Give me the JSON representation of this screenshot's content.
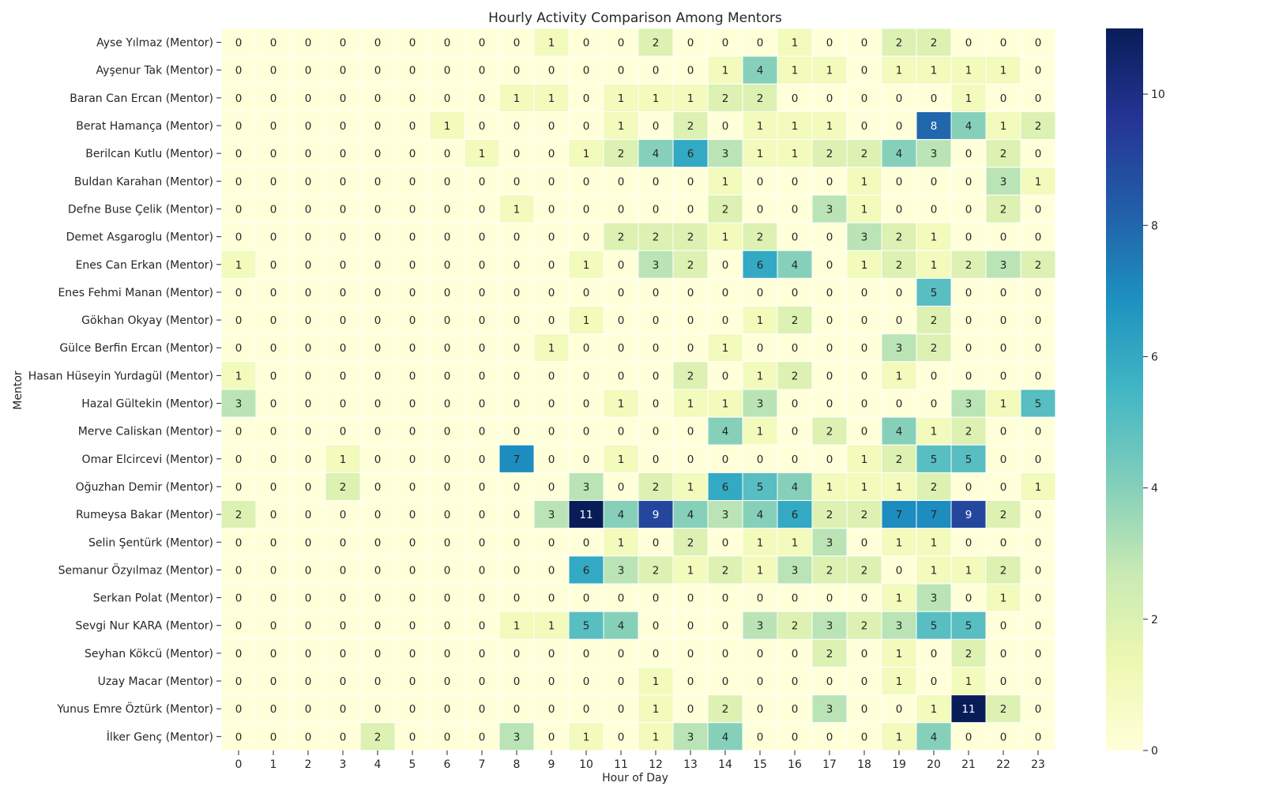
{
  "chart_data": {
    "type": "heatmap",
    "title": "Hourly Activity Comparison Among Mentors",
    "xlabel": "Hour of Day",
    "ylabel": "Mentor",
    "x": [
      "0",
      "1",
      "2",
      "3",
      "4",
      "5",
      "6",
      "7",
      "8",
      "9",
      "10",
      "11",
      "12",
      "13",
      "14",
      "15",
      "16",
      "17",
      "18",
      "19",
      "20",
      "21",
      "22",
      "23"
    ],
    "y": [
      "Ayse Yılmaz (Mentor)",
      "Ayşenur Tak (Mentor)",
      "Baran Can Ercan (Mentor)",
      "Berat Hamança (Mentor)",
      "Berilcan Kutlu (Mentor)",
      "Buldan Karahan (Mentor)",
      "Defne Buse Çelik (Mentor)",
      "Demet Asgaroglu (Mentor)",
      "Enes Can Erkan (Mentor)",
      "Enes Fehmi Manan (Mentor)",
      "Gökhan Okyay (Mentor)",
      "Gülce Berfin Ercan (Mentor)",
      "Hasan Hüseyin Yurdagül (Mentor)",
      "Hazal Gültekin (Mentor)",
      "Merve Caliskan (Mentor)",
      "Omar Elcircevi (Mentor)",
      "Oğuzhan Demir (Mentor)",
      "Rumeysa Bakar (Mentor)",
      "Selin Şentürk (Mentor)",
      "Semanur Özyılmaz (Mentor)",
      "Serkan Polat (Mentor)",
      "Sevgi Nur KARA (Mentor)",
      "Seyhan Kökcü (Mentor)",
      "Uzay Macar (Mentor)",
      "Yunus Emre Öztürk (Mentor)",
      "İlker Genç (Mentor)"
    ],
    "values": [
      [
        0,
        0,
        0,
        0,
        0,
        0,
        0,
        0,
        0,
        1,
        0,
        0,
        2,
        0,
        0,
        0,
        1,
        0,
        0,
        2,
        2,
        0,
        0,
        0
      ],
      [
        0,
        0,
        0,
        0,
        0,
        0,
        0,
        0,
        0,
        0,
        0,
        0,
        0,
        0,
        1,
        4,
        1,
        1,
        0,
        1,
        1,
        1,
        1,
        0
      ],
      [
        0,
        0,
        0,
        0,
        0,
        0,
        0,
        0,
        1,
        1,
        0,
        1,
        1,
        1,
        2,
        2,
        0,
        0,
        0,
        0,
        0,
        1,
        0,
        0
      ],
      [
        0,
        0,
        0,
        0,
        0,
        0,
        1,
        0,
        0,
        0,
        0,
        1,
        0,
        2,
        0,
        1,
        1,
        1,
        0,
        0,
        8,
        4,
        1,
        2
      ],
      [
        0,
        0,
        0,
        0,
        0,
        0,
        0,
        1,
        0,
        0,
        1,
        2,
        4,
        6,
        3,
        1,
        1,
        2,
        2,
        4,
        3,
        0,
        2,
        0
      ],
      [
        0,
        0,
        0,
        0,
        0,
        0,
        0,
        0,
        0,
        0,
        0,
        0,
        0,
        0,
        1,
        0,
        0,
        0,
        1,
        0,
        0,
        0,
        3,
        1
      ],
      [
        0,
        0,
        0,
        0,
        0,
        0,
        0,
        0,
        1,
        0,
        0,
        0,
        0,
        0,
        2,
        0,
        0,
        3,
        1,
        0,
        0,
        0,
        2,
        0
      ],
      [
        0,
        0,
        0,
        0,
        0,
        0,
        0,
        0,
        0,
        0,
        0,
        2,
        2,
        2,
        1,
        2,
        0,
        0,
        3,
        2,
        1,
        0,
        0,
        0
      ],
      [
        1,
        0,
        0,
        0,
        0,
        0,
        0,
        0,
        0,
        0,
        1,
        0,
        3,
        2,
        0,
        6,
        4,
        0,
        1,
        2,
        1,
        2,
        3,
        2
      ],
      [
        0,
        0,
        0,
        0,
        0,
        0,
        0,
        0,
        0,
        0,
        0,
        0,
        0,
        0,
        0,
        0,
        0,
        0,
        0,
        0,
        5,
        0,
        0,
        0
      ],
      [
        0,
        0,
        0,
        0,
        0,
        0,
        0,
        0,
        0,
        0,
        1,
        0,
        0,
        0,
        0,
        1,
        2,
        0,
        0,
        0,
        2,
        0,
        0,
        0
      ],
      [
        0,
        0,
        0,
        0,
        0,
        0,
        0,
        0,
        0,
        1,
        0,
        0,
        0,
        0,
        1,
        0,
        0,
        0,
        0,
        3,
        2,
        0,
        0,
        0
      ],
      [
        1,
        0,
        0,
        0,
        0,
        0,
        0,
        0,
        0,
        0,
        0,
        0,
        0,
        2,
        0,
        1,
        2,
        0,
        0,
        1,
        0,
        0,
        0,
        0
      ],
      [
        3,
        0,
        0,
        0,
        0,
        0,
        0,
        0,
        0,
        0,
        0,
        1,
        0,
        1,
        1,
        3,
        0,
        0,
        0,
        0,
        0,
        3,
        1,
        5
      ],
      [
        0,
        0,
        0,
        0,
        0,
        0,
        0,
        0,
        0,
        0,
        0,
        0,
        0,
        0,
        4,
        1,
        0,
        2,
        0,
        4,
        1,
        2,
        0,
        0
      ],
      [
        0,
        0,
        0,
        1,
        0,
        0,
        0,
        0,
        7,
        0,
        0,
        1,
        0,
        0,
        0,
        0,
        0,
        0,
        1,
        2,
        5,
        5,
        0,
        0
      ],
      [
        0,
        0,
        0,
        2,
        0,
        0,
        0,
        0,
        0,
        0,
        3,
        0,
        2,
        1,
        6,
        5,
        4,
        1,
        1,
        1,
        2,
        0,
        0,
        1
      ],
      [
        2,
        0,
        0,
        0,
        0,
        0,
        0,
        0,
        0,
        3,
        11,
        4,
        9,
        4,
        3,
        4,
        6,
        2,
        2,
        7,
        7,
        9,
        2,
        0
      ],
      [
        0,
        0,
        0,
        0,
        0,
        0,
        0,
        0,
        0,
        0,
        0,
        1,
        0,
        2,
        0,
        1,
        1,
        3,
        0,
        1,
        1,
        0,
        0,
        0
      ],
      [
        0,
        0,
        0,
        0,
        0,
        0,
        0,
        0,
        0,
        0,
        6,
        3,
        2,
        1,
        2,
        1,
        3,
        2,
        2,
        0,
        1,
        1,
        2,
        0
      ],
      [
        0,
        0,
        0,
        0,
        0,
        0,
        0,
        0,
        0,
        0,
        0,
        0,
        0,
        0,
        0,
        0,
        0,
        0,
        0,
        1,
        3,
        0,
        1,
        0
      ],
      [
        0,
        0,
        0,
        0,
        0,
        0,
        0,
        0,
        1,
        1,
        5,
        4,
        0,
        0,
        0,
        3,
        2,
        3,
        2,
        3,
        5,
        5,
        0,
        0
      ],
      [
        0,
        0,
        0,
        0,
        0,
        0,
        0,
        0,
        0,
        0,
        0,
        0,
        0,
        0,
        0,
        0,
        0,
        2,
        0,
        1,
        0,
        2,
        0,
        0
      ],
      [
        0,
        0,
        0,
        0,
        0,
        0,
        0,
        0,
        0,
        0,
        0,
        0,
        1,
        0,
        0,
        0,
        0,
        0,
        0,
        1,
        0,
        1,
        0,
        0
      ],
      [
        0,
        0,
        0,
        0,
        0,
        0,
        0,
        0,
        0,
        0,
        0,
        0,
        1,
        0,
        2,
        0,
        0,
        3,
        0,
        0,
        1,
        11,
        2,
        0
      ],
      [
        0,
        0,
        0,
        0,
        2,
        0,
        0,
        0,
        3,
        0,
        1,
        0,
        1,
        3,
        4,
        0,
        0,
        0,
        0,
        1,
        4,
        0,
        0,
        0
      ]
    ],
    "vmin": 0,
    "vmax": 11,
    "colormap": "YlGnBu",
    "colorbar_ticks": [
      0,
      2,
      4,
      6,
      8,
      10
    ],
    "annotated": true,
    "grid": false
  }
}
